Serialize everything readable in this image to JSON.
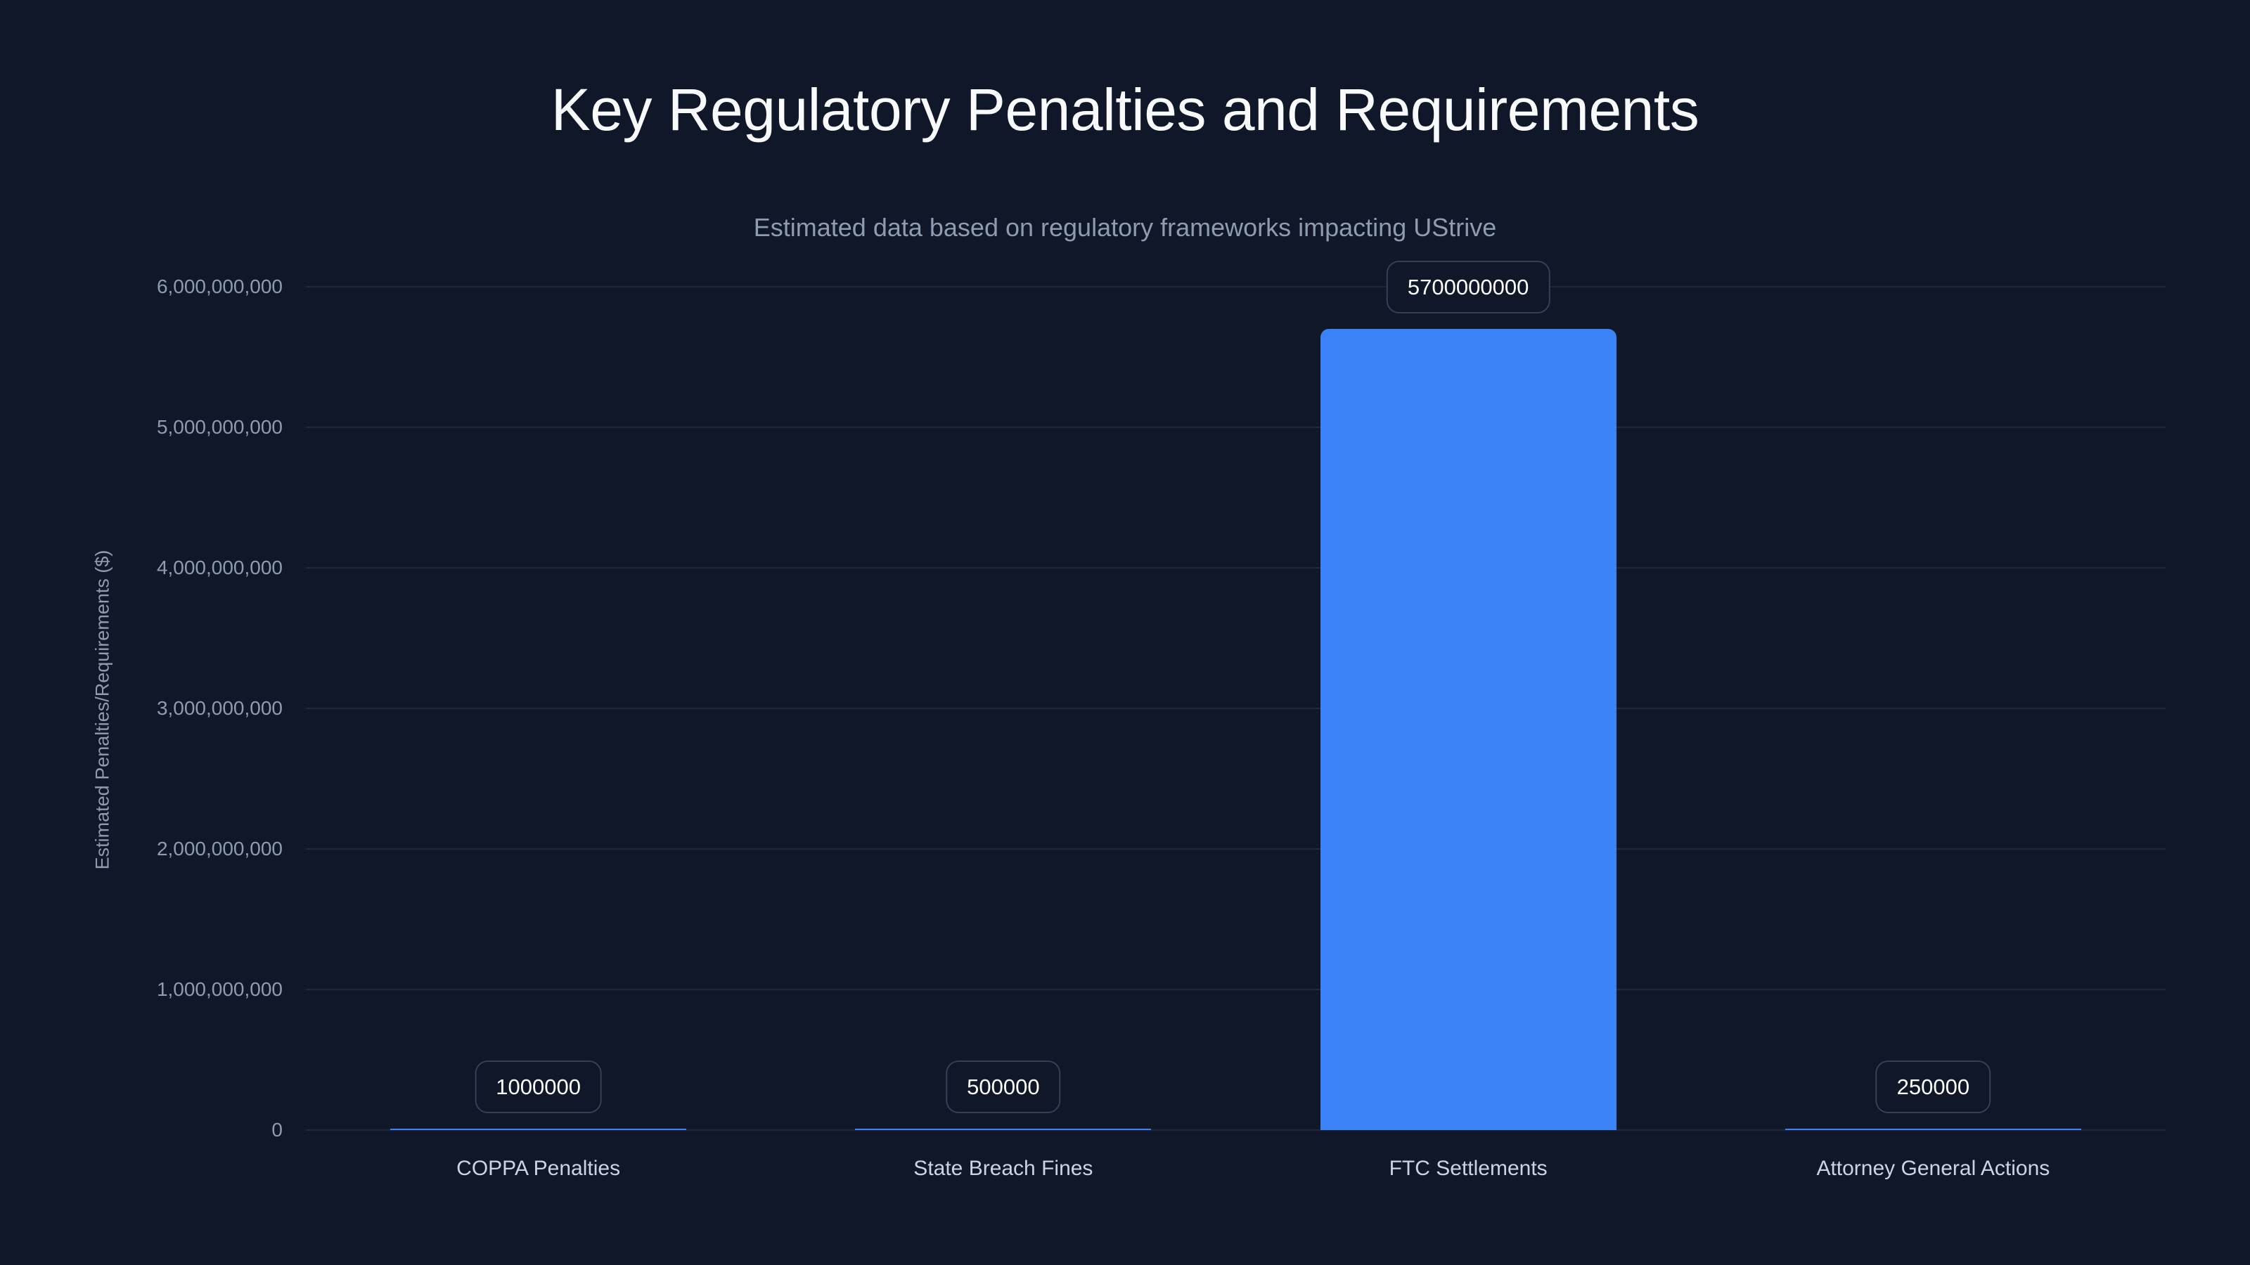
{
  "chart_data": {
    "type": "bar",
    "title": "Key Regulatory Penalties and Requirements",
    "subtitle": "Estimated data based on regulatory frameworks impacting UStrive",
    "xlabel": "",
    "ylabel": "Estimated Penalties/Requirements ($)",
    "categories": [
      "COPPA Penalties",
      "State Breach Fines",
      "FTC Settlements",
      "Attorney General Actions"
    ],
    "values": [
      1000000,
      500000,
      5700000000,
      250000
    ],
    "value_labels": [
      "1000000",
      "500000",
      "5700000000",
      "250000"
    ],
    "ylim": [
      0,
      6000000000
    ],
    "yticks": [
      0,
      1000000000,
      2000000000,
      3000000000,
      4000000000,
      5000000000,
      6000000000
    ],
    "ytick_labels": [
      "0",
      "1,000,000,000",
      "2,000,000,000",
      "3,000,000,000",
      "4,000,000,000",
      "5,000,000,000",
      "6,000,000,000"
    ],
    "grid": true,
    "legend": null,
    "colors": {
      "bar": "#3b82f6",
      "background": "#0f1729",
      "grid": "#1e293b",
      "label_border": "#334155"
    }
  }
}
